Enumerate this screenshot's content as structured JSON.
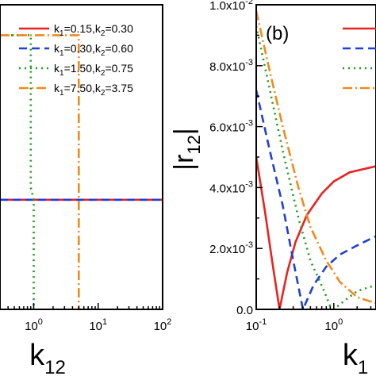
{
  "chart_data": [
    {
      "type": "line",
      "panel_label": "",
      "xlabel": {
        "base": "k",
        "sub": "12"
      },
      "ylabel": "",
      "xscale": "log",
      "xlim": [
        0.3,
        100
      ],
      "ylim": [
        0,
        1
      ],
      "xticks": [
        {
          "v": 1,
          "b": "10",
          "e": "0"
        },
        {
          "v": 10,
          "b": "10",
          "e": "1"
        },
        {
          "v": 100,
          "b": "10",
          "e": "2"
        }
      ],
      "legend_position": "top-right",
      "series": [
        {
          "name_parts": [
            "k",
            "1",
            "=0.15,k",
            "2",
            "=0.30"
          ],
          "color": "#e8231f",
          "dash": "solid",
          "points": [
            [
              0.3,
              0.36
            ],
            [
              100,
              0.36
            ]
          ]
        },
        {
          "name_parts": [
            "k",
            "1",
            "=0.30,k",
            "2",
            "=0.60"
          ],
          "color": "#1f3fd6",
          "dash": "dash",
          "points": [
            [
              0.3,
              0.36
            ],
            [
              100,
              0.36
            ]
          ]
        },
        {
          "name_parts": [
            "k",
            "1",
            "=1.50,k",
            "2",
            "=0.75"
          ],
          "color": "#1a9a1a",
          "dash": "dot",
          "points": [
            [
              0.3,
              0.9
            ],
            [
              0.9,
              0.9
            ],
            [
              0.9,
              0.4
            ],
            [
              1.0,
              0.36
            ],
            [
              1.0,
              0.0
            ]
          ]
        },
        {
          "name_parts": [
            "k",
            "1",
            "=7.50,k",
            "2",
            "=3.75"
          ],
          "color": "#f08a1c",
          "dash": "dashdot",
          "points": [
            [
              0.3,
              0.9
            ],
            [
              5.0,
              0.9
            ],
            [
              5.0,
              0.0
            ]
          ]
        }
      ]
    },
    {
      "type": "line",
      "panel_label": "(b)",
      "xlabel": {
        "base": "k",
        "sub": "1"
      },
      "ylabel": {
        "base": "|r",
        "sub": "12",
        "tail": "|"
      },
      "xscale": "log",
      "xlim": [
        0.1,
        3.5
      ],
      "ylim": [
        0,
        0.01
      ],
      "yticks": [
        {
          "v": 0,
          "text": "0.0"
        },
        {
          "v": 0.002,
          "m": "2.0x10",
          "e": "-3"
        },
        {
          "v": 0.004,
          "m": "4.0x10",
          "e": "-3"
        },
        {
          "v": 0.006,
          "m": "6.0x10",
          "e": "-3"
        },
        {
          "v": 0.008,
          "m": "8.0x10",
          "e": "-3"
        },
        {
          "v": 0.01,
          "m": "1.0x10",
          "e": "-2"
        }
      ],
      "xticks": [
        {
          "v": 0.1,
          "b": "10",
          "e": "-1"
        },
        {
          "v": 1,
          "b": "10",
          "e": "0"
        }
      ],
      "legend_position": "top-right",
      "series": [
        {
          "color": "#e8231f",
          "dash": "solid",
          "points": [
            [
              0.1,
              0.005
            ],
            [
              0.13,
              0.0032
            ],
            [
              0.16,
              0.0016
            ],
            [
              0.2,
              0.0
            ],
            [
              0.25,
              0.0012
            ],
            [
              0.32,
              0.0022
            ],
            [
              0.45,
              0.0031
            ],
            [
              0.7,
              0.0038
            ],
            [
              1.0,
              0.0042
            ],
            [
              1.6,
              0.0045
            ],
            [
              3.5,
              0.0047
            ]
          ]
        },
        {
          "color": "#1f3fd6",
          "dash": "dash",
          "points": [
            [
              0.1,
              0.0072
            ],
            [
              0.15,
              0.0052
            ],
            [
              0.22,
              0.0034
            ],
            [
              0.3,
              0.0016
            ],
            [
              0.4,
              0.0
            ],
            [
              0.55,
              0.0008
            ],
            [
              0.8,
              0.0014
            ],
            [
              1.2,
              0.0018
            ],
            [
              2.0,
              0.0021
            ],
            [
              3.5,
              0.0024
            ]
          ]
        },
        {
          "color": "#1a9a1a",
          "dash": "dot",
          "points": [
            [
              0.1,
              0.0093
            ],
            [
              0.15,
              0.0072
            ],
            [
              0.22,
              0.0052
            ],
            [
              0.35,
              0.003
            ],
            [
              0.5,
              0.0016
            ],
            [
              0.75,
              0.0006
            ],
            [
              0.9,
              0.0001
            ],
            [
              1.0,
              0.0
            ],
            [
              1.4,
              0.0003
            ],
            [
              2.0,
              0.0006
            ],
            [
              3.5,
              0.0008
            ]
          ]
        },
        {
          "color": "#f08a1c",
          "dash": "dashdot",
          "points": [
            [
              0.1,
              0.0098
            ],
            [
              0.15,
              0.0078
            ],
            [
              0.22,
              0.006
            ],
            [
              0.35,
              0.004
            ],
            [
              0.5,
              0.0027
            ],
            [
              0.8,
              0.0016
            ],
            [
              1.2,
              0.0009
            ],
            [
              2.0,
              0.0004
            ],
            [
              3.5,
              0.0002
            ]
          ]
        }
      ]
    }
  ]
}
